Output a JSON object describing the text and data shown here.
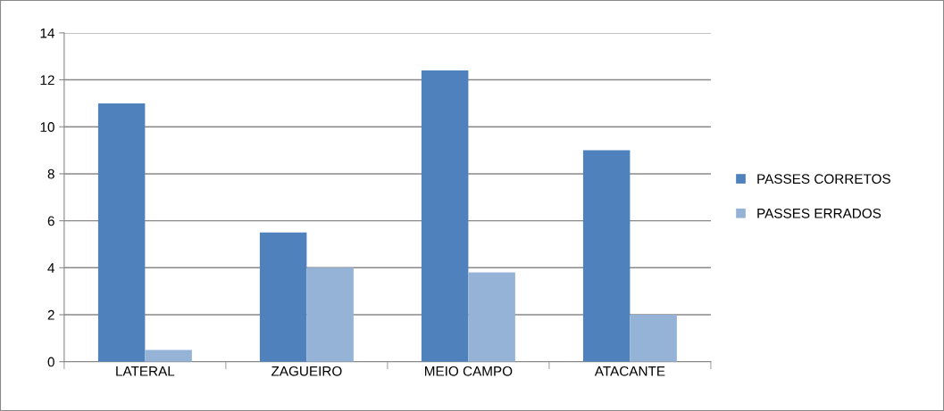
{
  "chart_data": {
    "type": "bar",
    "categories": [
      "LATERAL",
      "ZAGUEIRO",
      "MEIO CAMPO",
      "ATACANTE"
    ],
    "series": [
      {
        "name": "PASSES CORRETOS",
        "color": "#4f81bd",
        "values": [
          11,
          5.5,
          12.4,
          9
        ]
      },
      {
        "name": "PASSES ERRADOS",
        "color": "#95b3d7",
        "values": [
          0.5,
          4,
          3.8,
          2
        ]
      }
    ],
    "ylim": [
      0,
      14
    ],
    "yticks": [
      0,
      2,
      4,
      6,
      8,
      10,
      12,
      14
    ],
    "grid": "y",
    "legend": "right"
  }
}
